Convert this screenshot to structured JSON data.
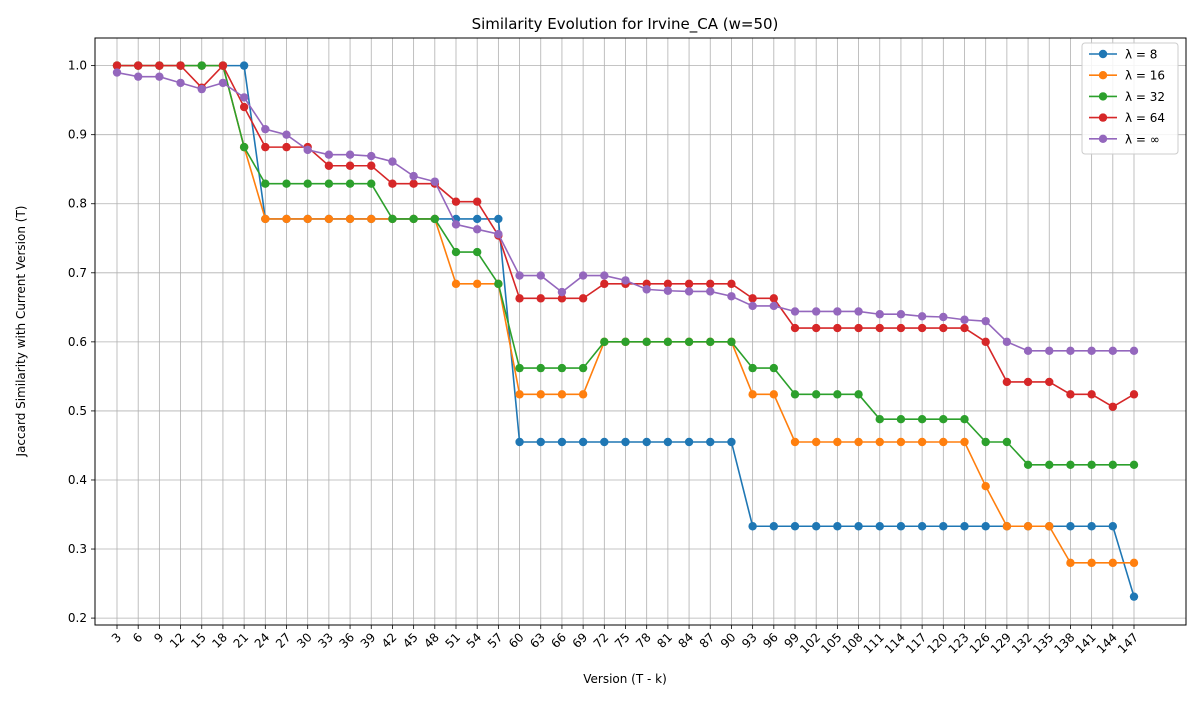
{
  "chart_data": {
    "type": "line",
    "title": "Similarity Evolution for Irvine_CA (w=50)",
    "xlabel": "Version (T - k)",
    "ylabel": "Jaccard Similarity with Current Version (T)",
    "x": [
      3,
      6,
      9,
      12,
      15,
      18,
      21,
      24,
      27,
      30,
      33,
      36,
      39,
      42,
      45,
      48,
      51,
      54,
      57,
      60,
      63,
      66,
      69,
      72,
      75,
      78,
      81,
      84,
      87,
      90,
      93,
      96,
      99,
      102,
      105,
      108,
      111,
      114,
      117,
      120,
      123,
      126,
      129,
      132,
      135,
      138,
      141,
      144,
      147
    ],
    "ylim": [
      0.19,
      1.04
    ],
    "yticks": [
      0.2,
      0.3,
      0.4,
      0.5,
      0.6,
      0.7,
      0.8,
      0.9,
      1.0
    ],
    "grid": true,
    "legend_position": "top-right",
    "series": [
      {
        "name": "λ = 8",
        "color": "#1f77b4",
        "values": [
          1.0,
          1.0,
          1.0,
          1.0,
          1.0,
          1.0,
          1.0,
          0.778,
          0.778,
          0.778,
          0.778,
          0.778,
          0.778,
          0.778,
          0.778,
          0.778,
          0.778,
          0.778,
          0.778,
          0.455,
          0.455,
          0.455,
          0.455,
          0.455,
          0.455,
          0.455,
          0.455,
          0.455,
          0.455,
          0.455,
          0.333,
          0.333,
          0.333,
          0.333,
          0.333,
          0.333,
          0.333,
          0.333,
          0.333,
          0.333,
          0.333,
          0.333,
          0.333,
          0.333,
          0.333,
          0.333,
          0.333,
          0.333,
          0.231
        ]
      },
      {
        "name": "λ = 16",
        "color": "#ff7f0e",
        "values": [
          1.0,
          1.0,
          1.0,
          1.0,
          1.0,
          1.0,
          0.882,
          0.778,
          0.778,
          0.778,
          0.778,
          0.778,
          0.778,
          0.778,
          0.778,
          0.778,
          0.684,
          0.684,
          0.684,
          0.524,
          0.524,
          0.524,
          0.524,
          0.6,
          0.6,
          0.6,
          0.6,
          0.6,
          0.6,
          0.6,
          0.524,
          0.524,
          0.455,
          0.455,
          0.455,
          0.455,
          0.455,
          0.455,
          0.455,
          0.455,
          0.455,
          0.391,
          0.333,
          0.333,
          0.333,
          0.28,
          0.28,
          0.28,
          0.28
        ]
      },
      {
        "name": "λ = 32",
        "color": "#2ca02c",
        "values": [
          1.0,
          1.0,
          1.0,
          1.0,
          1.0,
          1.0,
          0.882,
          0.829,
          0.829,
          0.829,
          0.829,
          0.829,
          0.829,
          0.778,
          0.778,
          0.778,
          0.73,
          0.73,
          0.684,
          0.562,
          0.562,
          0.562,
          0.562,
          0.6,
          0.6,
          0.6,
          0.6,
          0.6,
          0.6,
          0.6,
          0.562,
          0.562,
          0.524,
          0.524,
          0.524,
          0.524,
          0.488,
          0.488,
          0.488,
          0.488,
          0.488,
          0.455,
          0.455,
          0.422,
          0.422,
          0.422,
          0.422,
          0.422,
          0.422
        ]
      },
      {
        "name": "λ = 64",
        "color": "#d62728",
        "values": [
          1.0,
          1.0,
          1.0,
          1.0,
          0.968,
          1.0,
          0.94,
          0.882,
          0.882,
          0.882,
          0.855,
          0.855,
          0.855,
          0.829,
          0.829,
          0.829,
          0.803,
          0.803,
          0.754,
          0.663,
          0.663,
          0.663,
          0.663,
          0.684,
          0.684,
          0.684,
          0.684,
          0.684,
          0.684,
          0.684,
          0.663,
          0.663,
          0.62,
          0.62,
          0.62,
          0.62,
          0.62,
          0.62,
          0.62,
          0.62,
          0.62,
          0.6,
          0.542,
          0.542,
          0.542,
          0.524,
          0.524,
          0.506,
          0.524
        ]
      },
      {
        "name": "λ = ∞",
        "color": "#9467bd",
        "values": [
          0.99,
          0.984,
          0.984,
          0.975,
          0.966,
          0.975,
          0.954,
          0.908,
          0.9,
          0.878,
          0.871,
          0.871,
          0.869,
          0.861,
          0.84,
          0.832,
          0.77,
          0.763,
          0.756,
          0.696,
          0.696,
          0.672,
          0.696,
          0.696,
          0.689,
          0.676,
          0.674,
          0.673,
          0.673,
          0.666,
          0.652,
          0.652,
          0.644,
          0.644,
          0.644,
          0.644,
          0.64,
          0.64,
          0.637,
          0.636,
          0.632,
          0.63,
          0.6,
          0.587,
          0.587,
          0.587,
          0.587,
          0.587,
          0.587
        ]
      }
    ]
  }
}
